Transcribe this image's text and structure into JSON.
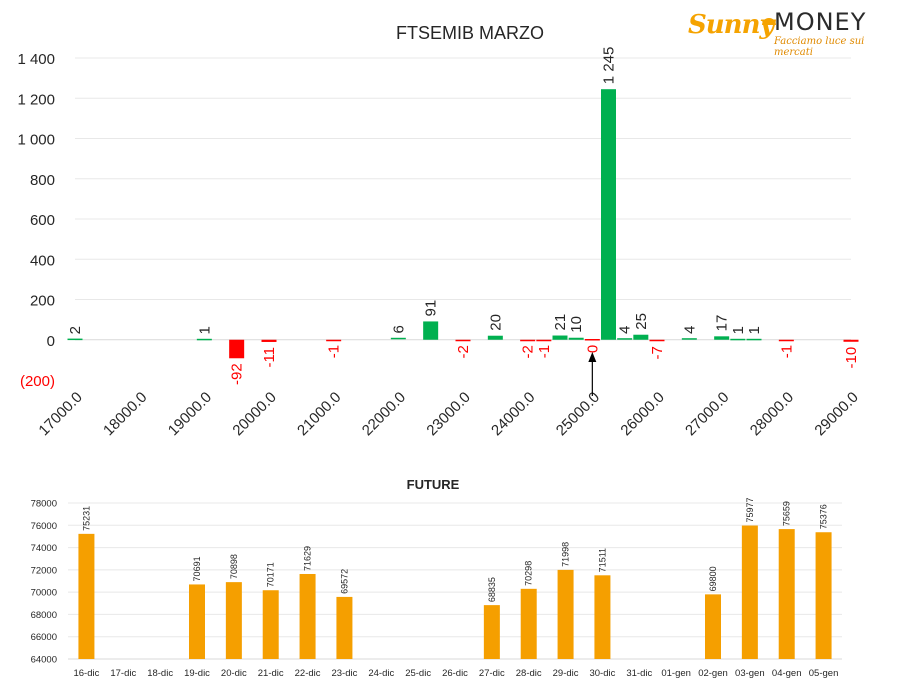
{
  "logo": {
    "brand_left": "Sunny",
    "brand_right": "MONEY",
    "tagline": "Facciamo luce sui mercati"
  },
  "colors": {
    "positive": "#00b050",
    "negative": "#ff0000",
    "future_bar": "#f59f00",
    "grid": "#e8e8e8",
    "axis_text": "#262626"
  },
  "chart_data": [
    {
      "type": "bar",
      "title": "FTSEMIB MARZO",
      "ylim": [
        -200,
        1400
      ],
      "yticks": [
        -200,
        0,
        200,
        400,
        600,
        800,
        1000,
        1200,
        1400
      ],
      "ytick_labels": [
        "(200)",
        "0",
        "200",
        "400",
        "600",
        "800",
        "1 000",
        "1 200",
        "1 400"
      ],
      "xlim": [
        17000,
        29000
      ],
      "xticks": [
        17000,
        18000,
        19000,
        20000,
        21000,
        22000,
        23000,
        24000,
        25000,
        26000,
        27000,
        28000,
        29000
      ],
      "xtick_labels": [
        "17000.0",
        "18000.0",
        "19000.0",
        "20000.0",
        "21000.0",
        "22000.0",
        "23000.0",
        "24000.0",
        "25000.0",
        "26000.0",
        "27000.0",
        "28000.0",
        "29000.0"
      ],
      "grid": true,
      "marker_arrow_x": 25000,
      "points": [
        {
          "x": 17000,
          "y": 2,
          "label": "2"
        },
        {
          "x": 19000,
          "y": 1,
          "label": "1"
        },
        {
          "x": 19500,
          "y": -92,
          "label": "-92"
        },
        {
          "x": 20000,
          "y": -11,
          "label": "-11"
        },
        {
          "x": 21000,
          "y": -1,
          "label": "-1"
        },
        {
          "x": 22000,
          "y": 6,
          "label": "6"
        },
        {
          "x": 22500,
          "y": 91,
          "label": "91"
        },
        {
          "x": 23000,
          "y": -2,
          "label": "-2"
        },
        {
          "x": 23500,
          "y": 20,
          "label": "20"
        },
        {
          "x": 24000,
          "y": -2,
          "label": "-2"
        },
        {
          "x": 24250,
          "y": -1,
          "label": "-1"
        },
        {
          "x": 24500,
          "y": 21,
          "label": "21"
        },
        {
          "x": 24750,
          "y": 10,
          "label": "10"
        },
        {
          "x": 25000,
          "y": 0,
          "label": "0"
        },
        {
          "x": 25250,
          "y": 1245,
          "label": "1 245"
        },
        {
          "x": 25500,
          "y": 4,
          "label": "4"
        },
        {
          "x": 25750,
          "y": 25,
          "label": "25"
        },
        {
          "x": 26000,
          "y": -7,
          "label": "-7"
        },
        {
          "x": 26500,
          "y": 4,
          "label": "4"
        },
        {
          "x": 27000,
          "y": 17,
          "label": "17"
        },
        {
          "x": 27250,
          "y": 1,
          "label": "1"
        },
        {
          "x": 27500,
          "y": 1,
          "label": "1"
        },
        {
          "x": 28000,
          "y": -1,
          "label": "-1"
        },
        {
          "x": 29000,
          "y": -10,
          "label": "-10"
        }
      ]
    },
    {
      "type": "bar",
      "title": "FUTURE",
      "ylim": [
        64000,
        78000
      ],
      "yticks": [
        64000,
        66000,
        68000,
        70000,
        72000,
        74000,
        76000,
        78000
      ],
      "ytick_labels": [
        "64000",
        "66000",
        "68000",
        "70000",
        "72000",
        "74000",
        "76000",
        "78000"
      ],
      "categories": [
        "16-dic",
        "17-dic",
        "18-dic",
        "19-dic",
        "20-dic",
        "21-dic",
        "22-dic",
        "23-dic",
        "24-dic",
        "25-dic",
        "26-dic",
        "27-dic",
        "28-dic",
        "29-dic",
        "30-dic",
        "31-dic",
        "01-gen",
        "02-gen",
        "03-gen",
        "04-gen",
        "05-gen"
      ],
      "values": [
        75231,
        null,
        null,
        70691,
        70898,
        70171,
        71629,
        69572,
        null,
        null,
        null,
        68835,
        70298,
        71998,
        71511,
        null,
        null,
        69800,
        75977,
        75659,
        75376
      ],
      "value_labels": [
        "75231",
        "",
        "",
        "70691",
        "70898",
        "70171",
        "71629",
        "69572",
        "",
        "",
        "",
        "68835",
        "70298",
        "71998",
        "71511",
        "",
        "",
        "69800",
        "75977",
        "75659",
        "75376"
      ],
      "grid": true
    }
  ]
}
